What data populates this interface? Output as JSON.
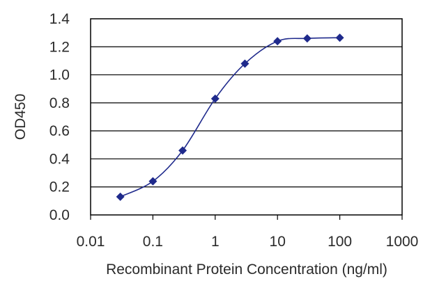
{
  "chart_data": {
    "type": "line",
    "xlabel": "Recombinant Protein Concentration (ng/ml)",
    "ylabel": "OD450",
    "x_scale": "log",
    "xlim": [
      0.01,
      1000
    ],
    "ylim": [
      0,
      1.4
    ],
    "x_ticks": [
      "0.01",
      "0.1",
      "1",
      "10",
      "100",
      "1000"
    ],
    "y_ticks": [
      "0.0",
      "0.2",
      "0.4",
      "0.6",
      "0.8",
      "1.0",
      "1.2",
      "1.4"
    ],
    "grid": "horizontal",
    "series_color": "#1f2a8c",
    "series": [
      {
        "x": [
          0.03,
          0.1,
          0.3,
          1,
          3,
          10,
          30,
          100
        ],
        "y": [
          0.13,
          0.24,
          0.46,
          0.83,
          1.08,
          1.24,
          1.26,
          1.265
        ]
      }
    ]
  }
}
